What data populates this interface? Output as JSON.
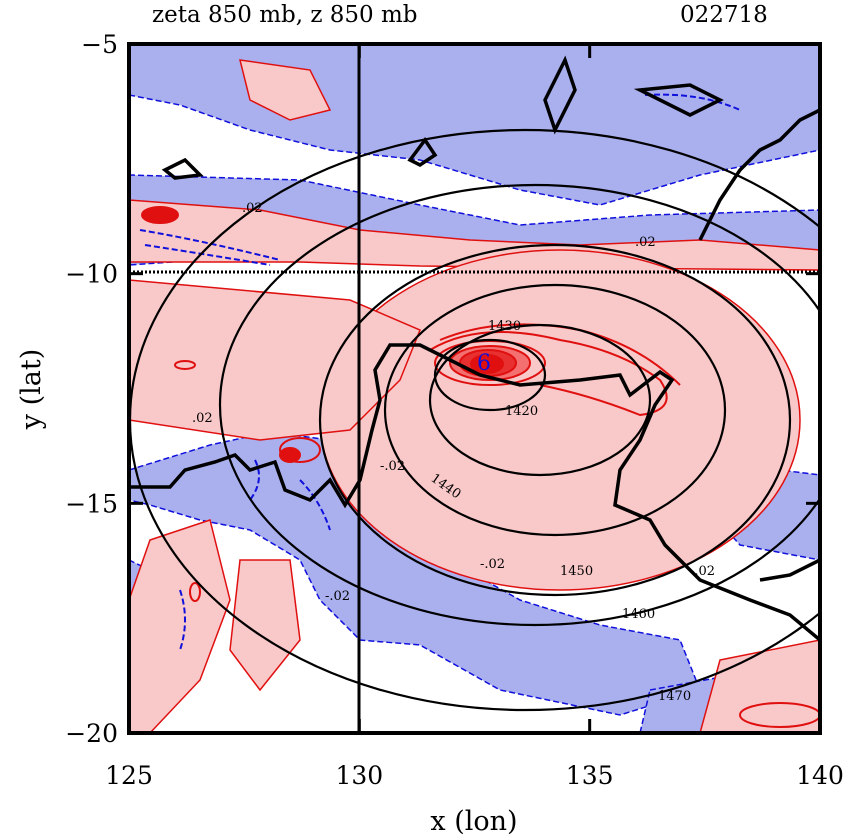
{
  "chart_data": {
    "type": "contour",
    "title_left": "zeta 850 mb, z 850 mb",
    "title_right": "022718",
    "xlabel": "x (lon)",
    "ylabel": "y (lat)",
    "xlim": [
      125,
      140
    ],
    "ylim": [
      -20,
      -5
    ],
    "x_ticks": [
      125,
      130,
      135,
      140
    ],
    "x_tick_labels": [
      "125",
      "130",
      "135",
      "140"
    ],
    "y_ticks": [
      -5,
      -10,
      -15,
      -20
    ],
    "y_tick_labels": [
      "−5",
      "−10",
      "−15",
      "−20"
    ],
    "reference_lines": {
      "lon": 130,
      "lat": -10
    },
    "colors": {
      "positive_fill": "#f9c8c8",
      "negative_fill": "#aab0ee",
      "positive_line": "#e01010",
      "negative_line": "#1010dd",
      "height_line": "#000000",
      "coast_line": "#000000"
    },
    "height_contours_m": [
      {
        "value": 1420,
        "label": "1420",
        "center": [
          133.4,
          -12.4
        ],
        "rx": 1.4,
        "ry": 0.9
      },
      {
        "value": 1430,
        "label": "1430",
        "center": [
          134.3,
          -12.9
        ],
        "rx": 2.4,
        "ry": 1.7
      },
      {
        "value": 1440,
        "label": "1440",
        "center": [
          134.6,
          -13.2
        ],
        "rx": 3.8,
        "ry": 2.7
      },
      {
        "value": 1450,
        "label": "1450",
        "center": [
          134.5,
          -13.3
        ],
        "rx": 5.2,
        "ry": 3.9
      },
      {
        "value": 1460,
        "label": "1460",
        "center": [
          134.0,
          -13.0
        ],
        "rx": 7.0,
        "ry": 4.8
      },
      {
        "value": 1470,
        "label": "1470",
        "center": [
          133.8,
          -13.4
        ],
        "rx": 8.6,
        "ry": 6.3
      }
    ],
    "vorticity_contour_labels": [
      ".02",
      "-.02",
      "6"
    ],
    "vortex_center": [
      132.8,
      -12.0
    ]
  }
}
